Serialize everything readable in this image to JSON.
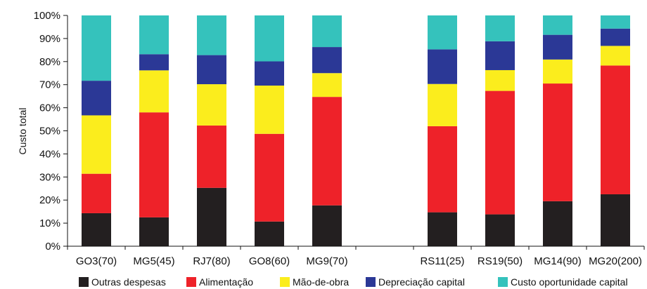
{
  "chart_data": {
    "type": "bar",
    "stacked": true,
    "ylabel": "Custo total",
    "ylim": [
      0,
      100
    ],
    "yticks": [
      "0%",
      "10%",
      "20%",
      "30%",
      "40%",
      "50%",
      "60%",
      "70%",
      "80%",
      "90%",
      "100%"
    ],
    "grid": false,
    "legend_position": "bottom",
    "categories": [
      "GO3(70)",
      "MG5(45)",
      "RJ7(80)",
      "GO8(60)",
      "MG9(70)",
      "",
      "RS11(25)",
      "RS19(50)",
      "MG14(90)",
      "MG20(200)"
    ],
    "series": [
      {
        "name": "Outras despesas",
        "color": "#231f20",
        "values": [
          14.3,
          12.5,
          25.3,
          10.7,
          17.7,
          null,
          14.7,
          13.8,
          19.5,
          22.5
        ]
      },
      {
        "name": "Alimentação",
        "color": "#ee2229",
        "values": [
          17.1,
          45.5,
          27.0,
          38.0,
          47.0,
          null,
          37.3,
          53.5,
          51.0,
          55.8
        ]
      },
      {
        "name": "Mão-de-obra",
        "color": "#fbed1d",
        "values": [
          25.3,
          18.2,
          17.9,
          20.9,
          10.3,
          null,
          18.3,
          9.0,
          10.4,
          8.5
        ]
      },
      {
        "name": "Depreciação capital",
        "color": "#2b3896",
        "values": [
          15.0,
          7.0,
          12.6,
          10.5,
          11.3,
          null,
          15.0,
          12.5,
          10.7,
          7.5
        ]
      },
      {
        "name": "Custo oportunidade capital",
        "color": "#35c2bc",
        "values": [
          28.3,
          16.8,
          17.2,
          19.9,
          13.7,
          null,
          14.7,
          11.2,
          8.4,
          5.7
        ]
      }
    ]
  }
}
